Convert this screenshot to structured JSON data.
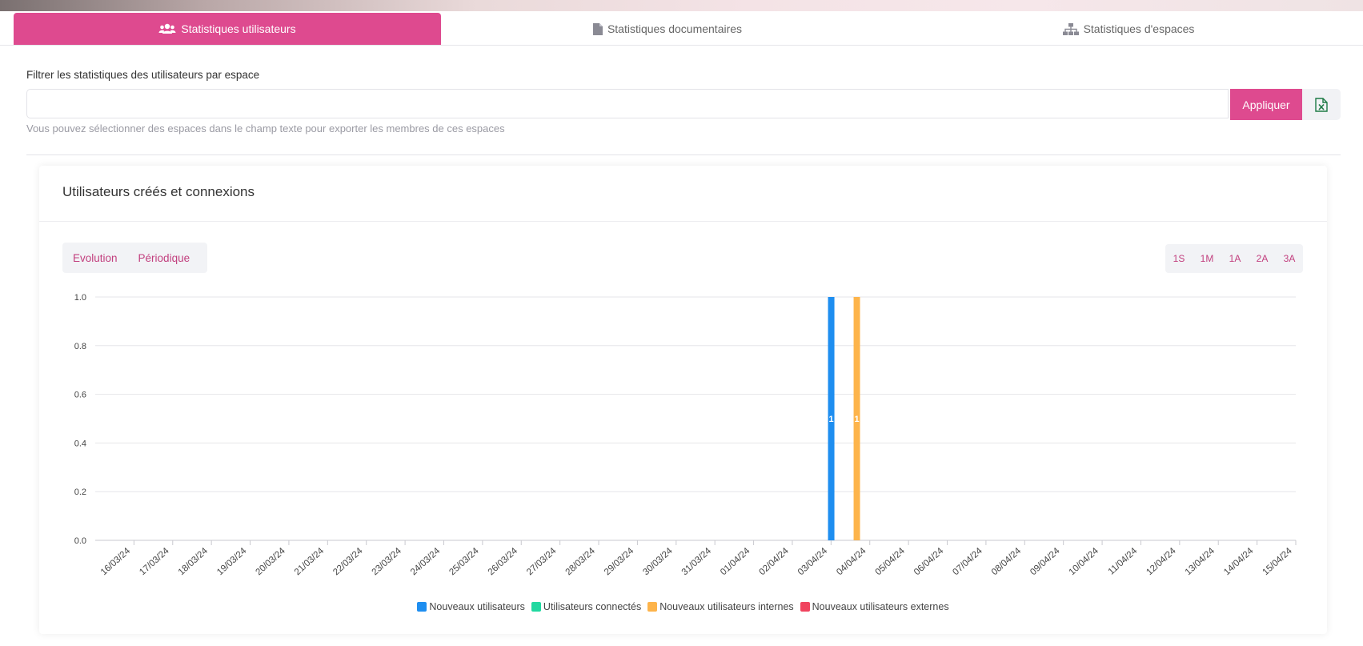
{
  "tabs": [
    {
      "label": "Statistiques utilisateurs",
      "icon": "users-icon",
      "active": true
    },
    {
      "label": "Statistiques documentaires",
      "icon": "file-icon",
      "active": false
    },
    {
      "label": "Statistiques d'espaces",
      "icon": "sitemap-icon",
      "active": false
    }
  ],
  "filter": {
    "label": "Filtrer les statistiques des utilisateurs par espace",
    "value": "",
    "apply_label": "Appliquer",
    "export_icon": "excel-icon",
    "help": "Vous pouvez sélectionner des espaces dans le champ texte pour exporter les membres de ces espaces"
  },
  "card": {
    "title": "Utilisateurs créés et connexions",
    "modes": [
      "Evolution",
      "Périodique"
    ],
    "ranges": [
      "1S",
      "1M",
      "1A",
      "2A",
      "3A"
    ]
  },
  "colors": {
    "accent": "#de4a8f",
    "series": [
      "#1e8ef0",
      "#21d8a0",
      "#fdb44b",
      "#f0445f"
    ]
  },
  "chart_data": {
    "type": "bar",
    "title": "",
    "xlabel": "",
    "ylabel": "",
    "ylim": [
      0,
      1.0
    ],
    "yticks": [
      "1.0",
      "0.8",
      "0.6",
      "0.4",
      "0.2",
      "0.0"
    ],
    "grid": true,
    "legend_position": "bottom",
    "categories": [
      "16/03/24",
      "17/03/24",
      "18/03/24",
      "19/03/24",
      "20/03/24",
      "21/03/24",
      "22/03/24",
      "23/03/24",
      "24/03/24",
      "25/03/24",
      "26/03/24",
      "27/03/24",
      "28/03/24",
      "29/03/24",
      "30/03/24",
      "31/03/24",
      "01/04/24",
      "02/04/24",
      "03/04/24",
      "04/04/24",
      "05/04/24",
      "06/04/24",
      "07/04/24",
      "08/04/24",
      "09/04/24",
      "10/04/24",
      "11/04/24",
      "12/04/24",
      "13/04/24",
      "14/04/24",
      "15/04/24"
    ],
    "series": [
      {
        "name": "Nouveaux utilisateurs",
        "values": [
          0,
          0,
          0,
          0,
          0,
          0,
          0,
          0,
          0,
          0,
          0,
          0,
          0,
          0,
          0,
          0,
          0,
          0,
          0,
          1,
          0,
          0,
          0,
          0,
          0,
          0,
          0,
          0,
          0,
          0,
          0
        ]
      },
      {
        "name": "Utilisateurs connectés",
        "values": [
          0,
          0,
          0,
          0,
          0,
          0,
          0,
          0,
          0,
          0,
          0,
          0,
          0,
          0,
          0,
          0,
          0,
          0,
          0,
          0,
          0,
          0,
          0,
          0,
          0,
          0,
          0,
          0,
          0,
          0,
          0
        ]
      },
      {
        "name": "Nouveaux utilisateurs internes",
        "values": [
          0,
          0,
          0,
          0,
          0,
          0,
          0,
          0,
          0,
          0,
          0,
          0,
          0,
          0,
          0,
          0,
          0,
          0,
          0,
          1,
          0,
          0,
          0,
          0,
          0,
          0,
          0,
          0,
          0,
          0,
          0
        ]
      },
      {
        "name": "Nouveaux utilisateurs externes",
        "values": [
          0,
          0,
          0,
          0,
          0,
          0,
          0,
          0,
          0,
          0,
          0,
          0,
          0,
          0,
          0,
          0,
          0,
          0,
          0,
          0,
          0,
          0,
          0,
          0,
          0,
          0,
          0,
          0,
          0,
          0,
          0
        ]
      }
    ]
  }
}
